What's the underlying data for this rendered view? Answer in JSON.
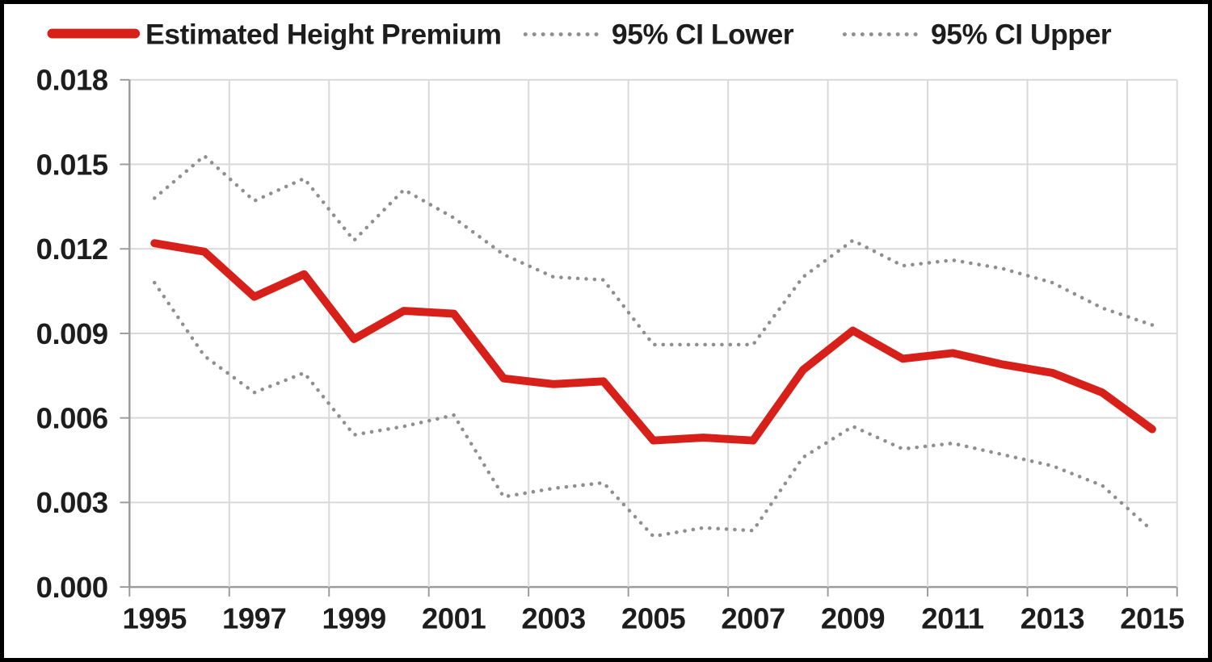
{
  "frame": {
    "background": "#ffffff",
    "border_color": "#000000"
  },
  "legend": {
    "position": "top",
    "items": [
      {
        "label": "Estimated Height Premium",
        "swatch": "red-solid-line"
      },
      {
        "label": "95% CI Lower",
        "swatch": "gray-dotted-line"
      },
      {
        "label": "95% CI Upper",
        "swatch": "gray-dotted-line"
      }
    ]
  },
  "colors": {
    "accent_red": "#d8201a",
    "ci_gray": "#8f8f8f",
    "gridline": "#d9d9d9",
    "axis": "#9b9b9b",
    "text": "#1d1d1d"
  },
  "chart_data": {
    "type": "line",
    "x": [
      1995,
      1996,
      1997,
      1998,
      1999,
      2000,
      2001,
      2002,
      2003,
      2004,
      2005,
      2006,
      2007,
      2008,
      2009,
      2010,
      2011,
      2012,
      2013,
      2014,
      2015
    ],
    "x_tick_labels": [
      "1995",
      "1997",
      "1999",
      "2001",
      "2003",
      "2005",
      "2007",
      "2009",
      "2011",
      "2013",
      "2015"
    ],
    "y_ticks": [
      0,
      0.003,
      0.006,
      0.009,
      0.012,
      0.015,
      0.018
    ],
    "y_tick_labels": [
      "0.000",
      "0.003",
      "0.006",
      "0.009",
      "0.012",
      "0.015",
      "0.018"
    ],
    "ylim": [
      0,
      0.018
    ],
    "grid": true,
    "legend_position": "top",
    "title": "",
    "xlabel": "",
    "ylabel": "",
    "series": [
      {
        "name": "Estimated Height Premium",
        "style": "solid",
        "color": "#d8201a",
        "values": [
          0.0122,
          0.0119,
          0.0103,
          0.0111,
          0.0088,
          0.0098,
          0.0097,
          0.0074,
          0.0072,
          0.0073,
          0.0052,
          0.0053,
          0.0052,
          0.0077,
          0.0091,
          0.0081,
          0.0083,
          0.0079,
          0.0076,
          0.0069,
          0.0056
        ]
      },
      {
        "name": "95% CI Lower",
        "style": "dotted",
        "color": "#8f8f8f",
        "values": [
          0.0108,
          0.0082,
          0.0069,
          0.0076,
          0.0054,
          0.0057,
          0.0061,
          0.0032,
          0.0035,
          0.0037,
          0.0018,
          0.0021,
          0.002,
          0.0046,
          0.0057,
          0.0049,
          0.0051,
          0.0047,
          0.0043,
          0.0036,
          0.002
        ]
      },
      {
        "name": "95% CI Upper",
        "style": "dotted",
        "color": "#8f8f8f",
        "values": [
          0.0138,
          0.0153,
          0.0137,
          0.0145,
          0.0123,
          0.0141,
          0.0131,
          0.0118,
          0.011,
          0.0109,
          0.0086,
          0.0086,
          0.0086,
          0.011,
          0.0123,
          0.0114,
          0.0116,
          0.0113,
          0.0108,
          0.0099,
          0.0093
        ]
      }
    ]
  }
}
